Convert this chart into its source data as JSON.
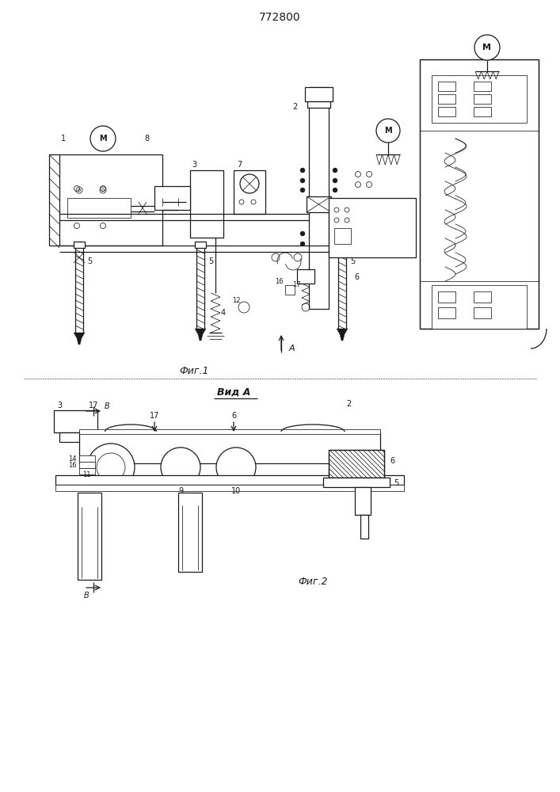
{
  "title": "772800",
  "fig1_label": "Фиг.1",
  "fig2_label": "Фиг.2",
  "vid_a_label": "Вид А",
  "background": "#ffffff",
  "line_color": "#1a1a1a",
  "lw": 0.9,
  "tlw": 0.55,
  "fig_width": 7.07,
  "fig_height": 10.0
}
